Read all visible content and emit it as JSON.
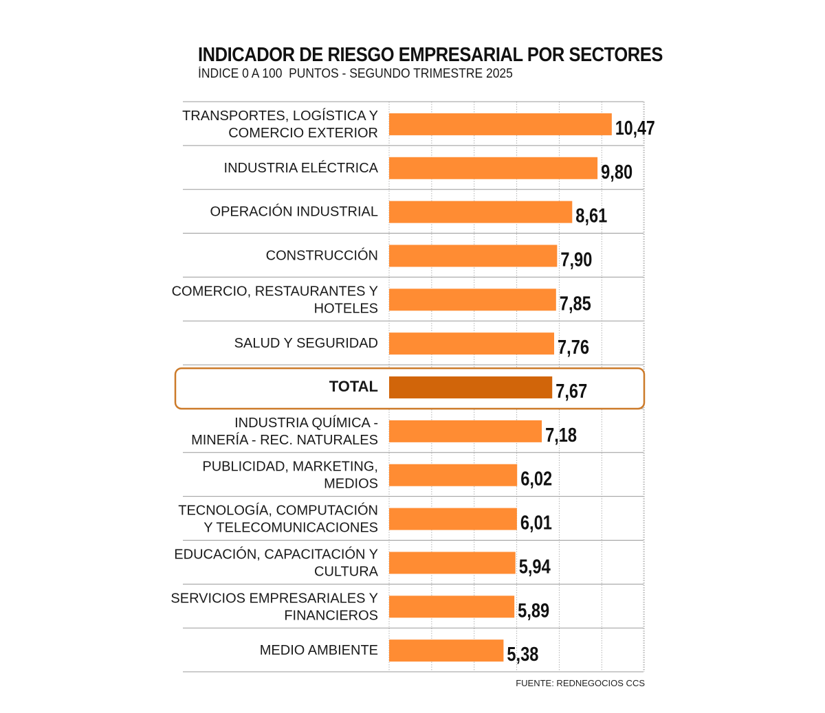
{
  "chart_data": {
    "type": "bar",
    "orientation": "horizontal",
    "title": "INDICADOR DE RIESGO EMPRESARIAL POR SECTORES",
    "subtitle": "ÍNDICE 0 A 100  PUNTOS - SEGUNDO TRIMESTRE 2025",
    "categories": [
      [
        "TRANSPORTES, LOGÍSTICA Y",
        "COMERCIO EXTERIOR"
      ],
      [
        "INDUSTRIA ELÉCTRICA"
      ],
      [
        "OPERACIÓN INDUSTRIAL"
      ],
      [
        "CONSTRUCCIÓN"
      ],
      [
        "COMERCIO, RESTAURANTES Y",
        "HOTELES"
      ],
      [
        "SALUD Y SEGURIDAD"
      ],
      [
        "TOTAL"
      ],
      [
        "INDUSTRIA QUÍMICA -",
        "MINERÍA - REC. NATURALES"
      ],
      [
        "PUBLICIDAD, MARKETING,",
        "MEDIOS"
      ],
      [
        "TECNOLOGÍA, COMPUTACIÓN",
        "Y TELECOMUNICACIONES"
      ],
      [
        "EDUCACIÓN, CAPACITACIÓN Y",
        "CULTURA"
      ],
      [
        "SERVICIOS EMPRESARIALES Y",
        "FINANCIEROS"
      ],
      [
        "MEDIO AMBIENTE"
      ]
    ],
    "values": [
      10.47,
      9.8,
      8.61,
      7.9,
      7.85,
      7.76,
      7.67,
      7.18,
      6.02,
      6.01,
      5.94,
      5.89,
      5.38
    ],
    "value_labels": [
      "10,47",
      "9,80",
      "8,61",
      "7,90",
      "7,85",
      "7,76",
      "7,67",
      "7,18",
      "6,02",
      "6,01",
      "5,94",
      "5,89",
      "5,38"
    ],
    "highlight_index": 6,
    "xlim": [
      0,
      12
    ],
    "xlabel": "",
    "ylabel": "",
    "grid": true,
    "colors": {
      "bar": "#ff8c33",
      "highlight_bar": "#d1650a",
      "highlight_border": "#cc7a29",
      "grid": "#b0b0b0",
      "row_divider": "#999999"
    }
  },
  "source": "FUENTE: REDNEGOCIOS CCS"
}
